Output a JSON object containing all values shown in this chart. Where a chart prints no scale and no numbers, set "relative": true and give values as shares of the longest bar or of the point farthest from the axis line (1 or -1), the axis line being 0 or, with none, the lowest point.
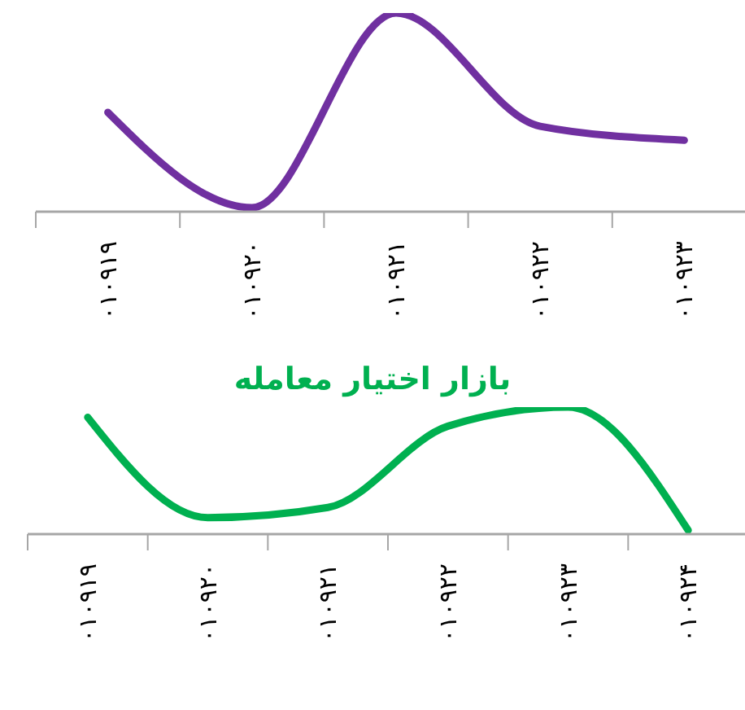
{
  "chart_data": [
    {
      "type": "line",
      "relative": true,
      "categories": [
        "۰۱۰۹۱۹",
        "۰۱۰۹۲۰",
        "۰۱۰۹۲۱",
        "۰۱۰۹۲۲",
        "۰۱۰۹۲۳"
      ],
      "series": [
        {
          "color": "#7030a0",
          "values": [
            0.5,
            0.02,
            1,
            0.43,
            0.36
          ]
        }
      ],
      "grid": false,
      "legend": false,
      "marker": "none"
    },
    {
      "type": "line",
      "relative": true,
      "title": "بازار اختیار معامله",
      "categories": [
        "۰۱۰۹۱۹",
        "۰۱۰۹۲۰",
        "۰۱۰۹۲۱",
        "۰۱۰۹۲۲",
        "۰۱۰۹۲۳",
        "۰۱۰۹۲۴"
      ],
      "series": [
        {
          "color": "#00b050",
          "values": [
            0.92,
            0.13,
            0.21,
            0.85,
            1,
            0.03
          ]
        }
      ],
      "grid": false,
      "legend": false,
      "marker": "none"
    }
  ]
}
